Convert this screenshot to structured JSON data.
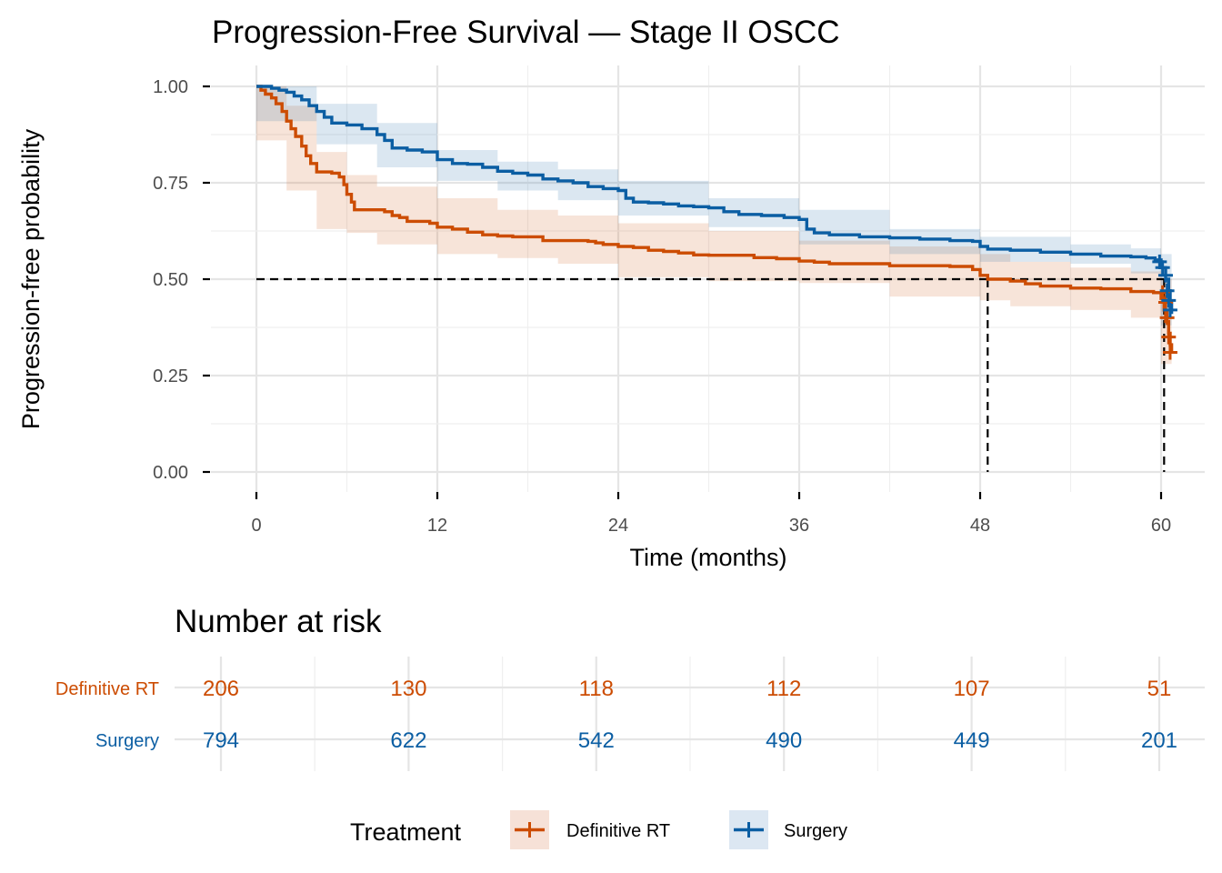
{
  "chart_data": {
    "type": "line",
    "subtype": "kaplan-meier",
    "title": "Progression-Free Survival — Stage II OSCC",
    "xlabel": "Time (months)",
    "ylabel": "Progression-free probability",
    "xlim": [
      0,
      63
    ],
    "ylim": [
      0,
      1
    ],
    "x_ticks": [
      0,
      12,
      24,
      36,
      48,
      60
    ],
    "x_tick_labels": [
      "0",
      "12",
      "24",
      "36",
      "48",
      "60"
    ],
    "y_ticks": [
      0,
      0.25,
      0.5,
      0.75,
      1.0
    ],
    "y_tick_labels": [
      "0.00",
      "0.25",
      "0.50",
      "0.75",
      "1.00"
    ],
    "grid": true,
    "median_reference": {
      "y": 0.5,
      "x_values": [
        48.5,
        60.2
      ]
    },
    "series": [
      {
        "name": "Definitive RT",
        "color": "#cc4c02",
        "fill": "#f6e1d7",
        "steps": [
          [
            0,
            1.0
          ],
          [
            0.3,
            0.99
          ],
          [
            0.6,
            0.98
          ],
          [
            1.0,
            0.97
          ],
          [
            1.3,
            0.955
          ],
          [
            1.7,
            0.935
          ],
          [
            2.0,
            0.91
          ],
          [
            2.3,
            0.89
          ],
          [
            2.6,
            0.87
          ],
          [
            3.0,
            0.845
          ],
          [
            3.3,
            0.82
          ],
          [
            3.6,
            0.8
          ],
          [
            4.0,
            0.778
          ],
          [
            5.0,
            0.775
          ],
          [
            5.5,
            0.765
          ],
          [
            5.8,
            0.745
          ],
          [
            6.0,
            0.72
          ],
          [
            6.3,
            0.7
          ],
          [
            6.5,
            0.68
          ],
          [
            8.5,
            0.675
          ],
          [
            9.0,
            0.665
          ],
          [
            9.5,
            0.66
          ],
          [
            10.0,
            0.65
          ],
          [
            11.5,
            0.645
          ],
          [
            12.0,
            0.635
          ],
          [
            13.0,
            0.63
          ],
          [
            14.0,
            0.622
          ],
          [
            15.0,
            0.615
          ],
          [
            16.0,
            0.612
          ],
          [
            17.0,
            0.61
          ],
          [
            19.0,
            0.6
          ],
          [
            22.0,
            0.598
          ],
          [
            22.5,
            0.594
          ],
          [
            23.0,
            0.59
          ],
          [
            24.0,
            0.585
          ],
          [
            25.0,
            0.582
          ],
          [
            26.0,
            0.575
          ],
          [
            27.0,
            0.572
          ],
          [
            28.0,
            0.568
          ],
          [
            29.0,
            0.563
          ],
          [
            30.0,
            0.562
          ],
          [
            33.0,
            0.556
          ],
          [
            34.5,
            0.553
          ],
          [
            36.0,
            0.547
          ],
          [
            37.0,
            0.544
          ],
          [
            38.0,
            0.54
          ],
          [
            42.0,
            0.535
          ],
          [
            46.0,
            0.533
          ],
          [
            47.5,
            0.525
          ],
          [
            48.0,
            0.51
          ],
          [
            48.5,
            0.5
          ],
          [
            50.0,
            0.495
          ],
          [
            51.0,
            0.488
          ],
          [
            52.0,
            0.482
          ],
          [
            54.0,
            0.477
          ],
          [
            56.0,
            0.475
          ],
          [
            58.0,
            0.468
          ],
          [
            59.5,
            0.465
          ],
          [
            60.0,
            0.45
          ],
          [
            60.2,
            0.42
          ],
          [
            60.3,
            0.39
          ],
          [
            60.5,
            0.36
          ],
          [
            60.6,
            0.33
          ],
          [
            60.7,
            0.31
          ]
        ],
        "ci_lower_at": [
          [
            0,
            1.0
          ],
          [
            2,
            0.86
          ],
          [
            4,
            0.73
          ],
          [
            6,
            0.63
          ],
          [
            8,
            0.62
          ],
          [
            12,
            0.59
          ],
          [
            16,
            0.565
          ],
          [
            20,
            0.555
          ],
          [
            24,
            0.54
          ],
          [
            30,
            0.505
          ],
          [
            36,
            0.495
          ],
          [
            42,
            0.49
          ],
          [
            48,
            0.455
          ],
          [
            50,
            0.445
          ],
          [
            54,
            0.43
          ],
          [
            58,
            0.42
          ],
          [
            60,
            0.4
          ],
          [
            60.7,
            0.28
          ]
        ],
        "ci_upper_at": [
          [
            0,
            1.0
          ],
          [
            2,
            0.95
          ],
          [
            4,
            0.83
          ],
          [
            6,
            0.77
          ],
          [
            8,
            0.74
          ],
          [
            12,
            0.71
          ],
          [
            16,
            0.68
          ],
          [
            20,
            0.665
          ],
          [
            24,
            0.645
          ],
          [
            30,
            0.625
          ],
          [
            36,
            0.6
          ],
          [
            42,
            0.585
          ],
          [
            48,
            0.565
          ],
          [
            50,
            0.545
          ],
          [
            54,
            0.53
          ],
          [
            58,
            0.52
          ],
          [
            60,
            0.5
          ],
          [
            60.7,
            0.45
          ]
        ],
        "censor_marks": [
          [
            60.1,
            0.465
          ],
          [
            60.3,
            0.44
          ],
          [
            60.4,
            0.4
          ],
          [
            60.5,
            0.35
          ],
          [
            60.6,
            0.31
          ]
        ]
      },
      {
        "name": "Surgery",
        "color": "#0b5ea3",
        "fill": "#dce7f2",
        "steps": [
          [
            0,
            1.0
          ],
          [
            1.0,
            0.995
          ],
          [
            1.5,
            0.99
          ],
          [
            2.0,
            0.985
          ],
          [
            2.5,
            0.975
          ],
          [
            3.0,
            0.965
          ],
          [
            3.5,
            0.95
          ],
          [
            4.0,
            0.935
          ],
          [
            4.5,
            0.92
          ],
          [
            5.0,
            0.905
          ],
          [
            6.0,
            0.9
          ],
          [
            7.0,
            0.89
          ],
          [
            8.0,
            0.875
          ],
          [
            8.5,
            0.86
          ],
          [
            9.0,
            0.84
          ],
          [
            10.0,
            0.835
          ],
          [
            11.0,
            0.83
          ],
          [
            12.0,
            0.81
          ],
          [
            13.0,
            0.8
          ],
          [
            14.0,
            0.798
          ],
          [
            15.0,
            0.79
          ],
          [
            16.0,
            0.78
          ],
          [
            17.0,
            0.775
          ],
          [
            18.0,
            0.77
          ],
          [
            19.0,
            0.76
          ],
          [
            20.0,
            0.755
          ],
          [
            21.0,
            0.75
          ],
          [
            22.0,
            0.74
          ],
          [
            23.0,
            0.735
          ],
          [
            24.0,
            0.73
          ],
          [
            24.5,
            0.71
          ],
          [
            25.0,
            0.7
          ],
          [
            26.0,
            0.698
          ],
          [
            27.0,
            0.695
          ],
          [
            28.0,
            0.69
          ],
          [
            29.0,
            0.688
          ],
          [
            30.0,
            0.685
          ],
          [
            31.0,
            0.675
          ],
          [
            32.0,
            0.668
          ],
          [
            33.5,
            0.665
          ],
          [
            35.0,
            0.66
          ],
          [
            36.0,
            0.655
          ],
          [
            36.5,
            0.63
          ],
          [
            37.0,
            0.62
          ],
          [
            38.0,
            0.615
          ],
          [
            40.0,
            0.61
          ],
          [
            42.0,
            0.607
          ],
          [
            44.0,
            0.604
          ],
          [
            46.0,
            0.6
          ],
          [
            47.5,
            0.598
          ],
          [
            48.0,
            0.585
          ],
          [
            48.5,
            0.578
          ],
          [
            50.0,
            0.575
          ],
          [
            52.0,
            0.57
          ],
          [
            54.0,
            0.565
          ],
          [
            56.0,
            0.56
          ],
          [
            58.0,
            0.558
          ],
          [
            59.0,
            0.555
          ],
          [
            59.6,
            0.55
          ],
          [
            60.0,
            0.53
          ],
          [
            60.3,
            0.5
          ],
          [
            60.5,
            0.47
          ],
          [
            60.6,
            0.44
          ],
          [
            60.7,
            0.41
          ]
        ],
        "ci_lower_at": [
          [
            0,
            1.0
          ],
          [
            4,
            0.91
          ],
          [
            8,
            0.85
          ],
          [
            12,
            0.79
          ],
          [
            16,
            0.755
          ],
          [
            20,
            0.73
          ],
          [
            24,
            0.705
          ],
          [
            30,
            0.665
          ],
          [
            36,
            0.635
          ],
          [
            42,
            0.59
          ],
          [
            48,
            0.565
          ],
          [
            54,
            0.545
          ],
          [
            58,
            0.54
          ],
          [
            60,
            0.515
          ],
          [
            60.7,
            0.38
          ]
        ],
        "ci_upper_at": [
          [
            0,
            1.0
          ],
          [
            4,
            0.955
          ],
          [
            8,
            0.905
          ],
          [
            12,
            0.835
          ],
          [
            16,
            0.805
          ],
          [
            20,
            0.785
          ],
          [
            24,
            0.755
          ],
          [
            30,
            0.71
          ],
          [
            36,
            0.68
          ],
          [
            42,
            0.63
          ],
          [
            48,
            0.61
          ],
          [
            54,
            0.59
          ],
          [
            58,
            0.58
          ],
          [
            60,
            0.565
          ],
          [
            60.7,
            0.46
          ]
        ],
        "censor_marks": [
          [
            59.9,
            0.545
          ],
          [
            60.1,
            0.53
          ],
          [
            60.3,
            0.51
          ],
          [
            60.4,
            0.47
          ],
          [
            60.5,
            0.445
          ],
          [
            60.6,
            0.42
          ]
        ]
      }
    ],
    "risk_table": {
      "title": "Number at risk",
      "times": [
        0,
        12,
        24,
        36,
        48,
        60
      ],
      "rows": [
        {
          "name": "Definitive RT",
          "color": "#cc4c02",
          "values": [
            "206",
            "130",
            "118",
            "112",
            "107",
            "51"
          ]
        },
        {
          "name": "Surgery",
          "color": "#0b5ea3",
          "values": [
            "794",
            "622",
            "542",
            "490",
            "449",
            "201"
          ]
        }
      ]
    },
    "legend": {
      "title": "Treatment",
      "position": "bottom",
      "entries": [
        {
          "label": "Definitive RT",
          "color": "#cc4c02",
          "fill": "#f6e1d7"
        },
        {
          "label": "Surgery",
          "color": "#0b5ea3",
          "fill": "#dce7f2"
        }
      ]
    }
  }
}
